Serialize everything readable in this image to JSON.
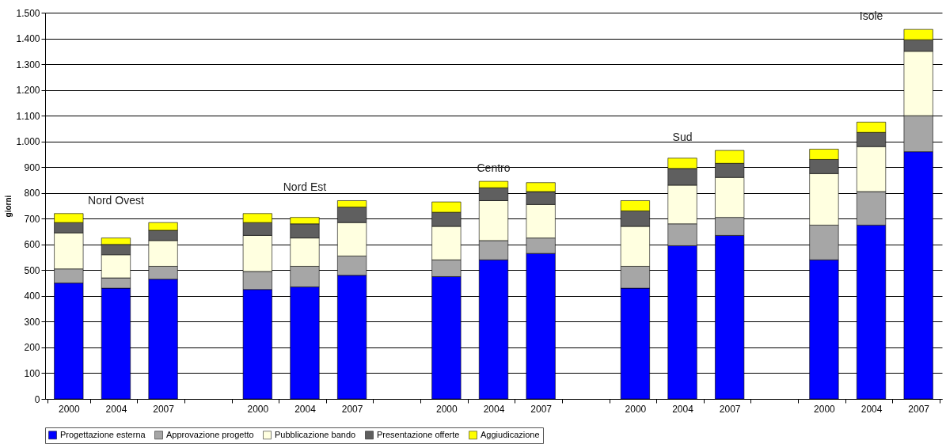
{
  "chart_data": {
    "type": "bar",
    "stacked": true,
    "ylabel": "giorni",
    "legend": "bottom",
    "grid": "y",
    "categories": [
      "2000",
      "2004",
      "2007",
      null,
      "2000",
      "2004",
      "2007",
      null,
      "2000",
      "2004",
      "2007",
      null,
      "2000",
      "2004",
      "2007",
      null,
      "2000",
      "2004",
      "2007"
    ],
    "ylim": [
      0,
      1500
    ],
    "yticks": [
      0,
      100,
      200,
      300,
      400,
      500,
      600,
      700,
      800,
      900,
      {
        "value": 1000,
        "label": "1.000"
      },
      {
        "value": 1100,
        "label": "1.100"
      },
      {
        "value": 1200,
        "label": "1.200"
      },
      {
        "value": 1300,
        "label": "1.300"
      },
      {
        "value": 1400,
        "label": "1.400"
      },
      {
        "value": 1500,
        "label": "1.500"
      }
    ],
    "annotations": [
      "Nord Ovest",
      "Nord Est",
      "Centro",
      "Sud",
      "Isole"
    ],
    "series": [
      {
        "name": "Progettazione esterna",
        "color": "#0000ff",
        "values": [
          450,
          430,
          465,
          null,
          425,
          435,
          480,
          null,
          475,
          540,
          565,
          null,
          430,
          595,
          635,
          null,
          540,
          675,
          960
        ]
      },
      {
        "name": "Approvazione progetto",
        "color": "#a6a6a6",
        "values": [
          55,
          40,
          50,
          null,
          70,
          80,
          75,
          null,
          65,
          75,
          60,
          null,
          85,
          85,
          70,
          null,
          135,
          130,
          140
        ]
      },
      {
        "name": "Pubblicazione bando",
        "color": "#ffffe0",
        "values": [
          140,
          90,
          100,
          null,
          140,
          110,
          130,
          null,
          130,
          155,
          130,
          null,
          155,
          150,
          155,
          null,
          200,
          175,
          250
        ]
      },
      {
        "name": "Presentazione offerte",
        "color": "#5f5f5f",
        "values": [
          40,
          40,
          40,
          null,
          50,
          55,
          60,
          null,
          55,
          50,
          50,
          null,
          60,
          65,
          55,
          null,
          55,
          55,
          45
        ]
      },
      {
        "name": "Aggiudicazione",
        "color": "#ffff00",
        "values": [
          35,
          25,
          30,
          null,
          35,
          25,
          25,
          null,
          40,
          25,
          35,
          null,
          40,
          40,
          50,
          null,
          40,
          40,
          40
        ]
      }
    ]
  }
}
